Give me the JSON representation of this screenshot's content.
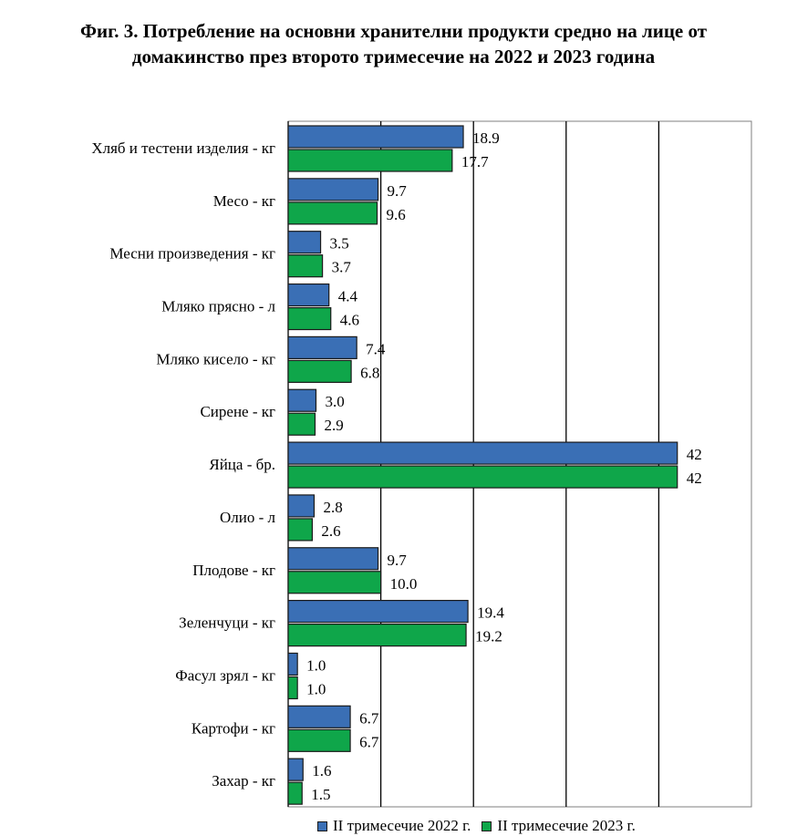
{
  "title_line1": "Фиг. 3. Потребление на основни хранителни продукти средно на лице от",
  "title_line2": "домакинство през второто тримесечие на 2022 и 2023 година",
  "chart_data": {
    "type": "bar",
    "orientation": "horizontal",
    "categories": [
      "Хляб и тестени изделия - кг",
      "Месо - кг",
      "Месни произведения  - кг",
      "Мляко прясно - л",
      "Мляко кисело - кг",
      "Сирене - кг",
      "Яйца - бр.",
      "Олио - л",
      "Плодове - кг",
      "Зеленчуци - кг",
      "Фасул зрял - кг",
      "Картофи - кг",
      "Захар - кг"
    ],
    "series": [
      {
        "name": "II тримесечие 2022 г.",
        "color": "#3a6fb5",
        "values": [
          18.9,
          9.7,
          3.5,
          4.4,
          7.4,
          3.0,
          42,
          2.8,
          9.7,
          19.4,
          1.0,
          6.7,
          1.6
        ],
        "labels": [
          "18.9",
          "9.7",
          "3.5",
          "4.4",
          "7.4",
          "3.0",
          "42",
          "2.8",
          "9.7",
          "19.4",
          "1.0",
          "6.7",
          "1.6"
        ]
      },
      {
        "name": "II тримесечие 2023 г.",
        "color": "#0fa64a",
        "values": [
          17.7,
          9.6,
          3.7,
          4.6,
          6.8,
          2.9,
          42,
          2.6,
          10.0,
          19.2,
          1.0,
          6.7,
          1.5
        ],
        "labels": [
          "17.7",
          "9.6",
          "3.7",
          "4.6",
          "6.8",
          "2.9",
          "42",
          "2.6",
          "10.0",
          "19.2",
          "1.0",
          "6.7",
          "1.5"
        ]
      }
    ],
    "xlim": [
      0,
      50
    ],
    "grid": true,
    "legend_position": "bottom"
  }
}
